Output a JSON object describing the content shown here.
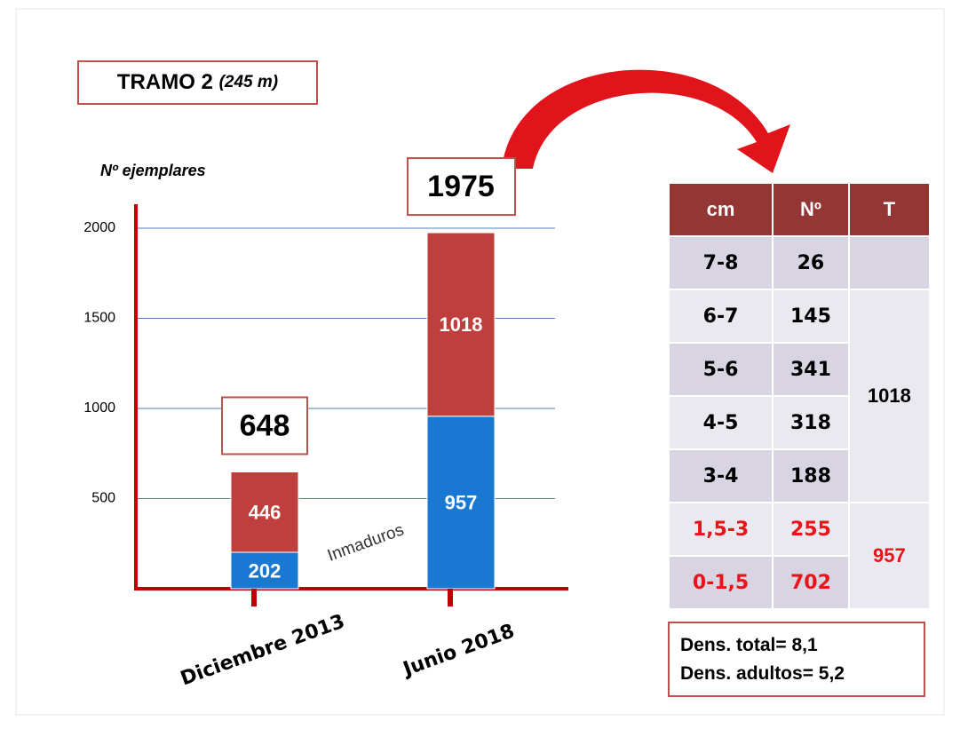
{
  "header": {
    "title": "TRAMO 2",
    "subtitle": "(245 m)"
  },
  "chart_data": {
    "type": "stacked_bar",
    "y_label": "Nº ejemplares",
    "categories": [
      "Diciembre 2013",
      "Junio 2018"
    ],
    "series": [
      {
        "color": "#1878d2",
        "values": [
          202,
          957
        ]
      },
      {
        "color": "#bf3f3c",
        "values": [
          446,
          1018
        ]
      }
    ],
    "totals": [
      648,
      1975
    ],
    "annotation": "Inmaduros",
    "ylim": [
      0,
      2000
    ],
    "yticks": [
      500,
      1000,
      1500,
      2000
    ],
    "grid": true
  },
  "table": {
    "header": [
      "cm",
      "Nº",
      "T"
    ],
    "rows": [
      [
        "7-8",
        "26"
      ],
      [
        "6-7",
        "145"
      ],
      [
        "5-6",
        "341"
      ],
      [
        "4-5",
        "318"
      ],
      [
        "3-4",
        "188"
      ],
      [
        "1,5-3",
        "255"
      ],
      [
        "0-1,5",
        "702"
      ]
    ],
    "totals": [
      "1018",
      "957"
    ]
  },
  "notes": [
    "Dens. total= 8,1",
    "Dens. adultos= 5,2"
  ]
}
